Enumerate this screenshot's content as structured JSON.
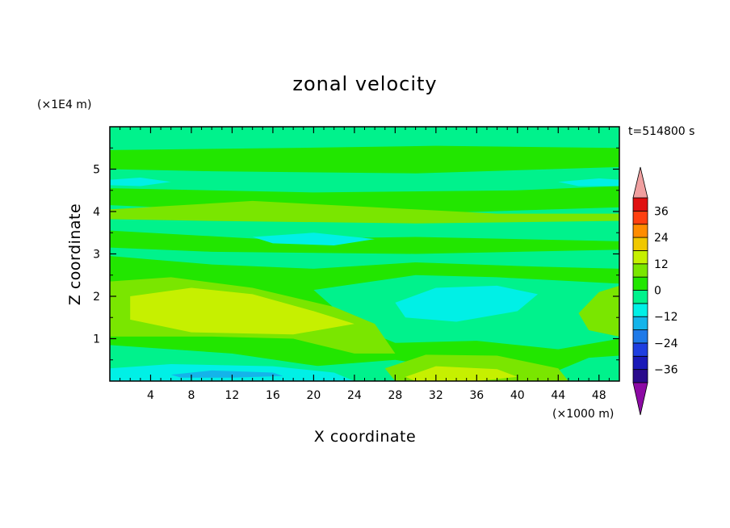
{
  "chart_data": {
    "type": "heatmap",
    "title": "zonal velocity",
    "xlabel": "X coordinate",
    "ylabel": "Z coordinate",
    "x_unit": "(×1000 m)",
    "y_unit": "(×1E4 m)",
    "time_label": "t=514800 s",
    "xlim": [
      0,
      50
    ],
    "ylim": [
      0,
      6
    ],
    "x_ticks": [
      "4",
      "8",
      "12",
      "16",
      "20",
      "24",
      "28",
      "32",
      "36",
      "40",
      "44",
      "48"
    ],
    "y_ticks": [
      "1",
      "2",
      "3",
      "4",
      "5"
    ],
    "colorbar": {
      "levels": [
        -42,
        -36,
        -30,
        -24,
        -18,
        -12,
        -6,
        0,
        6,
        12,
        18,
        24,
        30,
        36,
        42
      ],
      "labels": [
        "36",
        "24",
        "12",
        "0",
        "−12",
        "−24",
        "−36"
      ],
      "extend": "both",
      "colors": [
        "#8c0aa4",
        "#2a0b8c",
        "#1a1ab8",
        "#1f3fe0",
        "#1f7ae8",
        "#14b4ea",
        "#00f0e6",
        "#00f28c",
        "#22e600",
        "#7ae600",
        "#c6f000",
        "#f0c800",
        "#ff8c00",
        "#ff4010",
        "#e01010",
        "#f0a0a0"
      ]
    },
    "background": "#00f28c",
    "regions": [
      {
        "level": 6,
        "color": "#22e600",
        "points": [
          [
            0,
            5.45
          ],
          [
            18,
            5.5
          ],
          [
            32,
            5.55
          ],
          [
            50,
            5.5
          ],
          [
            50,
            5.05
          ],
          [
            30,
            4.9
          ],
          [
            10,
            4.95
          ],
          [
            0,
            5.0
          ]
        ]
      },
      {
        "level": 6,
        "color": "#22e600",
        "points": [
          [
            0,
            4.55
          ],
          [
            20,
            4.45
          ],
          [
            40,
            4.5
          ],
          [
            50,
            4.6
          ],
          [
            50,
            4.1
          ],
          [
            30,
            3.95
          ],
          [
            10,
            4.05
          ],
          [
            0,
            4.15
          ]
        ]
      },
      {
        "level": 12,
        "color": "#7ae600",
        "points": [
          [
            0,
            4.05
          ],
          [
            14,
            4.25
          ],
          [
            26,
            4.1
          ],
          [
            38,
            3.95
          ],
          [
            50,
            3.95
          ],
          [
            50,
            3.78
          ],
          [
            30,
            3.72
          ],
          [
            10,
            3.78
          ],
          [
            0,
            3.82
          ]
        ]
      },
      {
        "level": 6,
        "color": "#22e600",
        "points": [
          [
            0,
            3.55
          ],
          [
            15,
            3.35
          ],
          [
            30,
            3.4
          ],
          [
            50,
            3.3
          ],
          [
            50,
            3.1
          ],
          [
            30,
            3.0
          ],
          [
            10,
            3.05
          ],
          [
            0,
            3.15
          ]
        ]
      },
      {
        "level": 6,
        "color": "#22e600",
        "points": [
          [
            0,
            2.95
          ],
          [
            10,
            2.75
          ],
          [
            20,
            2.65
          ],
          [
            30,
            2.8
          ],
          [
            42,
            2.7
          ],
          [
            50,
            2.65
          ],
          [
            50,
            0.6
          ],
          [
            47,
            0.55
          ],
          [
            42,
            0.05
          ],
          [
            30,
            0.45
          ],
          [
            22,
            0.3
          ],
          [
            12,
            0.65
          ],
          [
            0,
            0.85
          ]
        ]
      },
      {
        "level": 0,
        "color": "#00f28c",
        "points": [
          [
            20,
            2.15
          ],
          [
            30,
            2.5
          ],
          [
            38,
            2.45
          ],
          [
            50,
            2.3
          ],
          [
            50,
            1.0
          ],
          [
            44,
            0.75
          ],
          [
            36,
            0.95
          ],
          [
            28,
            0.9
          ],
          [
            24,
            1.3
          ]
        ]
      },
      {
        "level": -6,
        "color": "#00f0e6",
        "points": [
          [
            28,
            1.85
          ],
          [
            32,
            2.2
          ],
          [
            38,
            2.25
          ],
          [
            42,
            2.05
          ],
          [
            40,
            1.65
          ],
          [
            34,
            1.4
          ],
          [
            29,
            1.5
          ]
        ]
      },
      {
        "level": 12,
        "color": "#7ae600",
        "points": [
          [
            0,
            2.35
          ],
          [
            6,
            2.45
          ],
          [
            14,
            2.2
          ],
          [
            22,
            1.75
          ],
          [
            26,
            1.35
          ],
          [
            28,
            0.65
          ],
          [
            24,
            0.65
          ],
          [
            18,
            1.0
          ],
          [
            10,
            1.05
          ],
          [
            0,
            1.05
          ]
        ]
      },
      {
        "level": 18,
        "color": "#c6f000",
        "points": [
          [
            2,
            2.0
          ],
          [
            8,
            2.2
          ],
          [
            14,
            2.05
          ],
          [
            20,
            1.65
          ],
          [
            24,
            1.35
          ],
          [
            18,
            1.1
          ],
          [
            8,
            1.15
          ],
          [
            2,
            1.45
          ]
        ]
      },
      {
        "level": 12,
        "color": "#7ae600",
        "points": [
          [
            48,
            2.1
          ],
          [
            50,
            2.25
          ],
          [
            50,
            1.05
          ],
          [
            47,
            1.2
          ],
          [
            46,
            1.6
          ]
        ]
      },
      {
        "level": 0,
        "color": "#00f28c",
        "points": [
          [
            0,
            0.6
          ],
          [
            10,
            0.45
          ],
          [
            20,
            0.35
          ],
          [
            28,
            0.5
          ],
          [
            38,
            0.15
          ],
          [
            44,
            0.0
          ],
          [
            50,
            0.0
          ],
          [
            50,
            0.0
          ],
          [
            0,
            0.0
          ]
        ]
      },
      {
        "level": 12,
        "color": "#7ae600",
        "points": [
          [
            27,
            0.3
          ],
          [
            31,
            0.62
          ],
          [
            38,
            0.6
          ],
          [
            44,
            0.3
          ],
          [
            45,
            0.0
          ],
          [
            28,
            0.0
          ]
        ]
      },
      {
        "level": 18,
        "color": "#c6f000",
        "points": [
          [
            29,
            0.1
          ],
          [
            32,
            0.35
          ],
          [
            38,
            0.28
          ],
          [
            40,
            0.1
          ],
          [
            36,
            0.0
          ],
          [
            30,
            0.0
          ]
        ]
      },
      {
        "level": -6,
        "color": "#00f0e6",
        "points": [
          [
            0,
            0.3
          ],
          [
            6,
            0.4
          ],
          [
            16,
            0.35
          ],
          [
            22,
            0.2
          ],
          [
            24,
            0.0
          ],
          [
            0,
            0.0
          ]
        ]
      },
      {
        "level": -12,
        "color": "#14b4ea",
        "points": [
          [
            6,
            0.15
          ],
          [
            10,
            0.25
          ],
          [
            16,
            0.2
          ],
          [
            17,
            0.12
          ],
          [
            12,
            0.08
          ],
          [
            7,
            0.08
          ]
        ]
      },
      {
        "level": -6,
        "color": "#00f0e6",
        "points": [
          [
            14,
            3.4
          ],
          [
            20,
            3.5
          ],
          [
            26,
            3.35
          ],
          [
            22,
            3.2
          ],
          [
            16,
            3.25
          ]
        ]
      },
      {
        "level": -6,
        "color": "#00f0e6",
        "points": [
          [
            0,
            4.75
          ],
          [
            3,
            4.8
          ],
          [
            6,
            4.7
          ],
          [
            3,
            4.6
          ],
          [
            0,
            4.62
          ]
        ]
      },
      {
        "level": -6,
        "color": "#00f0e6",
        "points": [
          [
            44,
            4.7
          ],
          [
            48,
            4.78
          ],
          [
            50,
            4.75
          ],
          [
            50,
            4.6
          ],
          [
            46,
            4.6
          ]
        ]
      }
    ]
  }
}
